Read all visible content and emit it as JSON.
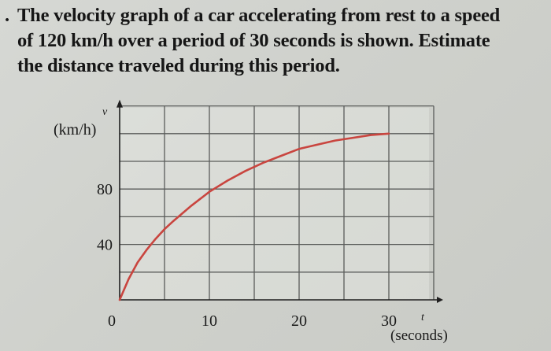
{
  "problem": {
    "bullet": ".",
    "lines": [
      "The velocity graph of a car accelerating from rest to a speed",
      "of 120 km/h over a period of 30 seconds is shown. Estimate",
      "the distance traveled during this period."
    ]
  },
  "chart_data": {
    "type": "line",
    "y_axis_symbol": "v",
    "ylabel": "(km/h)",
    "x_axis_symbol": "t",
    "xlabel": "(seconds)",
    "x_ticks": [
      0,
      10,
      20,
      30
    ],
    "y_ticks": [
      40,
      80
    ],
    "xlim": [
      0,
      35
    ],
    "ylim": [
      0,
      140
    ],
    "grid": true,
    "line_color": "#c9453f",
    "series": [
      {
        "x": [
          0,
          1,
          2,
          3,
          4,
          5,
          6,
          8,
          10,
          12,
          14,
          16,
          18,
          20,
          22,
          24,
          26,
          28,
          30
        ],
        "y": [
          0,
          15,
          27,
          36,
          44,
          51,
          57,
          68,
          78,
          86,
          93,
          99,
          104,
          109,
          112,
          115,
          117,
          119,
          120
        ]
      }
    ]
  }
}
